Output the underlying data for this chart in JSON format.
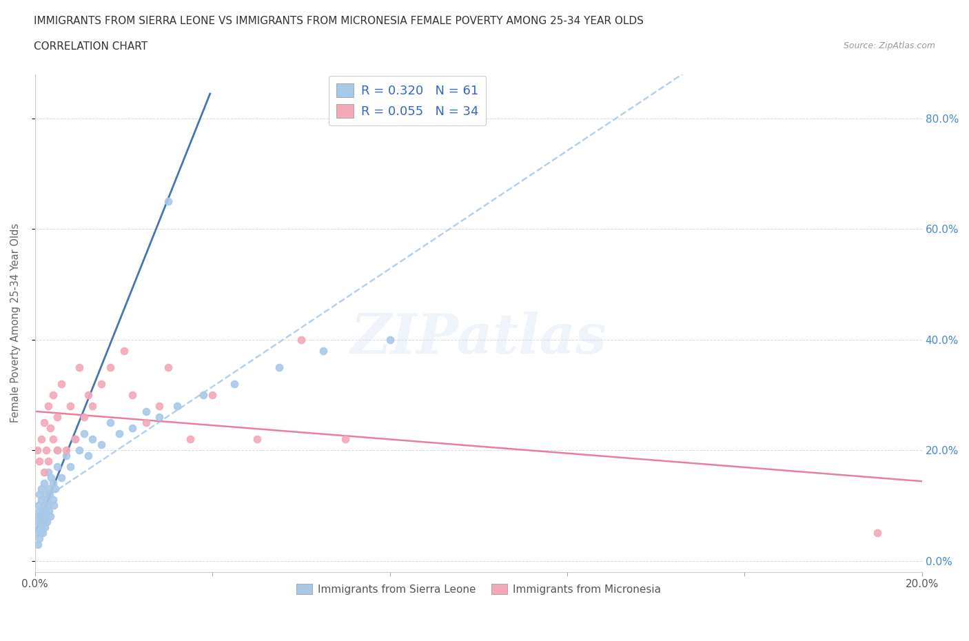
{
  "title_line1": "IMMIGRANTS FROM SIERRA LEONE VS IMMIGRANTS FROM MICRONESIA FEMALE POVERTY AMONG 25-34 YEAR OLDS",
  "title_line2": "CORRELATION CHART",
  "source_text": "Source: ZipAtlas.com",
  "ylabel": "Female Poverty Among 25-34 Year Olds",
  "xlim": [
    0.0,
    0.2
  ],
  "ylim": [
    -0.02,
    0.88
  ],
  "sierra_leone_color": "#a8c8e8",
  "micronesia_color": "#f4a8b8",
  "sierra_leone_line_color": "#3366aa",
  "sierra_leone_dashed_color": "#a8c8e8",
  "micronesia_line_color": "#e87090",
  "sierra_leone_R": 0.32,
  "sierra_leone_N": 61,
  "micronesia_R": 0.055,
  "micronesia_N": 34,
  "legend_label_1": "Immigrants from Sierra Leone",
  "legend_label_2": "Immigrants from Micronesia",
  "watermark_text": "ZIPatlas",
  "sierra_leone_x": [
    0.0003,
    0.0005,
    0.0006,
    0.0007,
    0.0008,
    0.0009,
    0.001,
    0.001,
    0.001,
    0.0012,
    0.0013,
    0.0014,
    0.0015,
    0.0015,
    0.0016,
    0.0017,
    0.0018,
    0.0019,
    0.002,
    0.002,
    0.0021,
    0.0022,
    0.0023,
    0.0024,
    0.0025,
    0.0026,
    0.0027,
    0.0028,
    0.003,
    0.003,
    0.0032,
    0.0033,
    0.0035,
    0.0036,
    0.004,
    0.004,
    0.0042,
    0.0045,
    0.005,
    0.005,
    0.006,
    0.007,
    0.008,
    0.009,
    0.01,
    0.011,
    0.012,
    0.013,
    0.015,
    0.017,
    0.019,
    0.022,
    0.025,
    0.028,
    0.032,
    0.038,
    0.045,
    0.055,
    0.065,
    0.08,
    0.03
  ],
  "sierra_leone_y": [
    0.05,
    0.08,
    0.03,
    0.07,
    0.1,
    0.04,
    0.06,
    0.09,
    0.12,
    0.05,
    0.08,
    0.11,
    0.07,
    0.13,
    0.06,
    0.09,
    0.05,
    0.08,
    0.1,
    0.14,
    0.07,
    0.06,
    0.09,
    0.12,
    0.08,
    0.11,
    0.07,
    0.1,
    0.13,
    0.16,
    0.09,
    0.12,
    0.08,
    0.15,
    0.11,
    0.14,
    0.1,
    0.13,
    0.17,
    0.2,
    0.15,
    0.19,
    0.17,
    0.22,
    0.2,
    0.23,
    0.19,
    0.22,
    0.21,
    0.25,
    0.23,
    0.24,
    0.27,
    0.26,
    0.28,
    0.3,
    0.32,
    0.35,
    0.38,
    0.4,
    0.65
  ],
  "micronesia_x": [
    0.0005,
    0.001,
    0.0015,
    0.002,
    0.002,
    0.0025,
    0.003,
    0.003,
    0.0035,
    0.004,
    0.004,
    0.005,
    0.005,
    0.006,
    0.007,
    0.008,
    0.009,
    0.01,
    0.011,
    0.012,
    0.013,
    0.015,
    0.017,
    0.02,
    0.022,
    0.025,
    0.028,
    0.03,
    0.035,
    0.04,
    0.05,
    0.06,
    0.07,
    0.19
  ],
  "micronesia_y": [
    0.2,
    0.18,
    0.22,
    0.16,
    0.25,
    0.2,
    0.18,
    0.28,
    0.24,
    0.22,
    0.3,
    0.2,
    0.26,
    0.32,
    0.2,
    0.28,
    0.22,
    0.35,
    0.26,
    0.3,
    0.28,
    0.32,
    0.35,
    0.38,
    0.3,
    0.25,
    0.28,
    0.35,
    0.22,
    0.3,
    0.22,
    0.4,
    0.22,
    0.05
  ]
}
